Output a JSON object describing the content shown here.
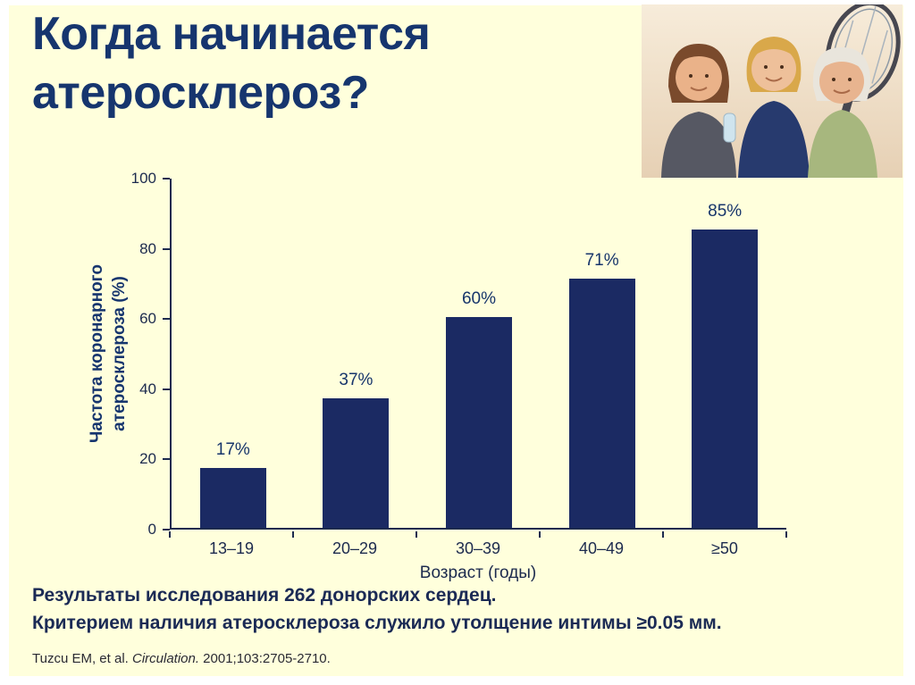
{
  "slide": {
    "title": {
      "line1": "Когда начинается",
      "line2": "атеросклероз?"
    },
    "photo_description": "Три женщины с теннисной ракеткой"
  },
  "chart_data": {
    "type": "bar",
    "categories": [
      "13–19",
      "20–29",
      "30–39",
      "40–49",
      "≥50"
    ],
    "values": [
      17,
      37,
      60,
      71,
      85
    ],
    "bar_labels": [
      "17%",
      "37%",
      "60%",
      "71%",
      "85%"
    ],
    "xlabel": "Возраст (годы)",
    "ylabel": "Частота коронарного атеросклероза (%)",
    "yticks": [
      0,
      20,
      40,
      60,
      80,
      100
    ],
    "ylim": [
      0,
      100
    ],
    "grid": false,
    "legend": false,
    "bar_color": "#1b2a63"
  },
  "footer": {
    "line1": "Результаты исследования 262 донорских сердец.",
    "line2": "Критерием наличия атеросклероза служило утолщение интимы ≥0.05 мм.",
    "citation": {
      "pre": "Tuzcu EM, et al. ",
      "italic": "Circulation.",
      "post": " 2001;103:2705-2710."
    }
  },
  "colors": {
    "slide_background": "#FFFFDC",
    "title_text": "#16356e",
    "body_text": "#1b2a55",
    "axis": "#1c2a4e",
    "bar": "#1b2a63"
  }
}
